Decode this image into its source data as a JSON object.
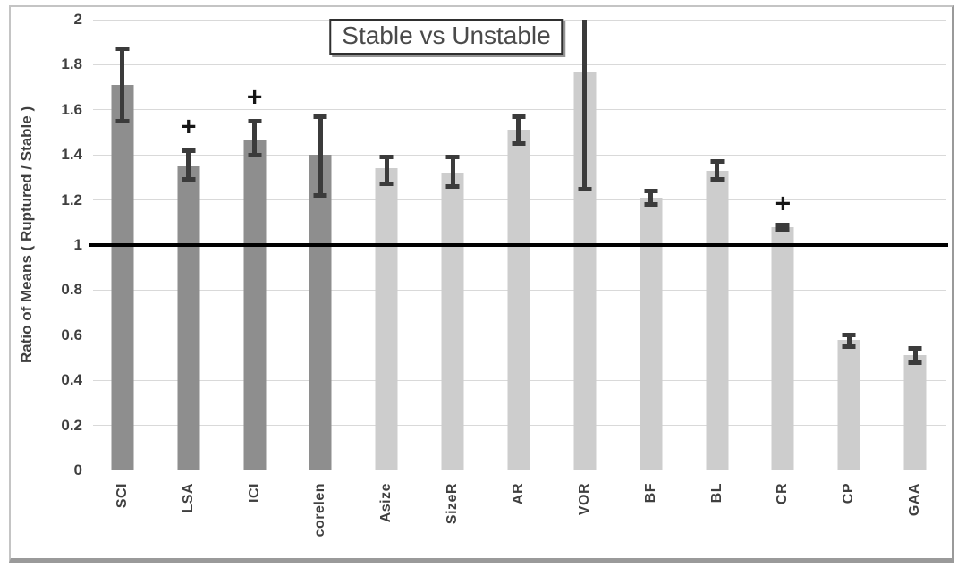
{
  "frame": {
    "background": "#ffffff",
    "border_color": "#c4c4c4",
    "shadow_color": "#9a9a9a"
  },
  "chart_data": {
    "type": "bar",
    "title": "Stable vs Unstable",
    "xlabel": "",
    "ylabel": "Ratio of Means ( Ruptured / Stable )",
    "ylim": [
      0,
      2
    ],
    "yticks": [
      0,
      0.2,
      0.4,
      0.6,
      0.8,
      1,
      1.2,
      1.4,
      1.6,
      1.8,
      2
    ],
    "ytick_labels": [
      "0",
      "0.2",
      "0.4",
      "0.6",
      "0.8",
      "1",
      "1.2",
      "1.4",
      "1.6",
      "1.8",
      "2"
    ],
    "grid": true,
    "legend_position": "none",
    "reference_line_y": 1,
    "categories": [
      "SCI",
      "LSA",
      "ICI",
      "corelen",
      "Asize",
      "SizeR",
      "AR",
      "VOR",
      "BF",
      "BL",
      "CR",
      "CP",
      "GAA"
    ],
    "bars": [
      {
        "label": "SCI",
        "value": 1.71,
        "err_low": 1.54,
        "err_high": 1.88,
        "shade": "dark",
        "plus_marker": null
      },
      {
        "label": "LSA",
        "value": 1.35,
        "err_low": 1.28,
        "err_high": 1.43,
        "shade": "dark",
        "plus_marker": 1.52
      },
      {
        "label": "ICI",
        "value": 1.47,
        "err_low": 1.39,
        "err_high": 1.56,
        "shade": "dark",
        "plus_marker": 1.65
      },
      {
        "label": "corelen",
        "value": 1.4,
        "err_low": 1.21,
        "err_high": 1.58,
        "shade": "dark",
        "plus_marker": null
      },
      {
        "label": "Asize",
        "value": 1.34,
        "err_low": 1.26,
        "err_high": 1.4,
        "shade": "light",
        "plus_marker": null
      },
      {
        "label": "SizeR",
        "value": 1.32,
        "err_low": 1.25,
        "err_high": 1.4,
        "shade": "light",
        "plus_marker": null
      },
      {
        "label": "AR",
        "value": 1.51,
        "err_low": 1.44,
        "err_high": 1.58,
        "shade": "light",
        "plus_marker": null
      },
      {
        "label": "VOR",
        "value": 1.77,
        "err_low": 1.24,
        "err_high": 2.05,
        "shade": "light",
        "plus_marker": null
      },
      {
        "label": "BF",
        "value": 1.21,
        "err_low": 1.17,
        "err_high": 1.25,
        "shade": "light",
        "plus_marker": null
      },
      {
        "label": "BL",
        "value": 1.33,
        "err_low": 1.28,
        "err_high": 1.38,
        "shade": "light",
        "plus_marker": null
      },
      {
        "label": "CR",
        "value": 1.08,
        "err_low": 1.06,
        "err_high": 1.1,
        "shade": "light",
        "plus_marker": 1.18
      },
      {
        "label": "CP",
        "value": 0.58,
        "err_low": 0.54,
        "err_high": 0.61,
        "shade": "light",
        "plus_marker": null
      },
      {
        "label": "GAA",
        "value": 0.51,
        "err_low": 0.47,
        "err_high": 0.55,
        "shade": "light",
        "plus_marker": null
      }
    ],
    "plus_symbol": "+",
    "colors": {
      "bar_dark": "#8e8e8e",
      "bar_light": "#cdcdcd",
      "error_bar": "#3b3b3b",
      "reference_line": "#000000",
      "gridline": "#d9d9d9",
      "text": "#3f3f3f",
      "title_text": "#4a4a4a"
    }
  }
}
